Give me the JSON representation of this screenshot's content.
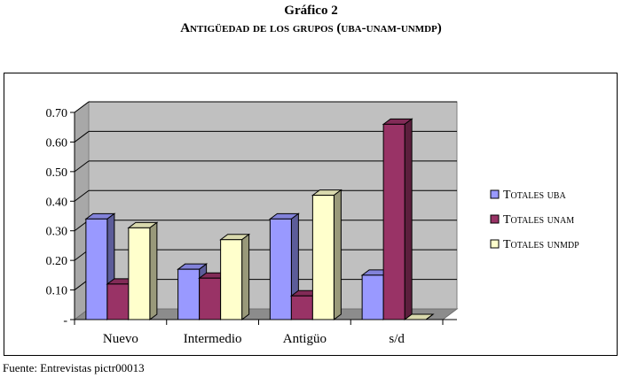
{
  "title": {
    "line1": "Gráfico 2",
    "line2": "Antigüedad de los grupos (uba-unam-unmdp)"
  },
  "source": "Fuente: Entrevistas pictr00013",
  "chart_data": {
    "type": "bar",
    "title": "Antigüedad de los grupos (uba-unam-unmdp)",
    "xlabel": "",
    "ylabel": "",
    "ylim": [
      0,
      0.7
    ],
    "yticks": [
      "-",
      "0.10",
      "0.20",
      "0.30",
      "0.40",
      "0.50",
      "0.60",
      "0.70"
    ],
    "categories": [
      "Nuevo",
      "Intermedio",
      "Antigüo",
      "s/d"
    ],
    "grid": true,
    "legend_position": "right",
    "series": [
      {
        "name": "Totales uba",
        "color": "#9999ff",
        "values": [
          0.34,
          0.17,
          0.34,
          0.15
        ]
      },
      {
        "name": "Totales unam",
        "color": "#993366",
        "values": [
          0.12,
          0.14,
          0.08,
          0.66
        ]
      },
      {
        "name": "Totales unmdp",
        "color": "#ffffcc",
        "values": [
          0.31,
          0.27,
          0.42,
          0.0
        ]
      }
    ]
  }
}
